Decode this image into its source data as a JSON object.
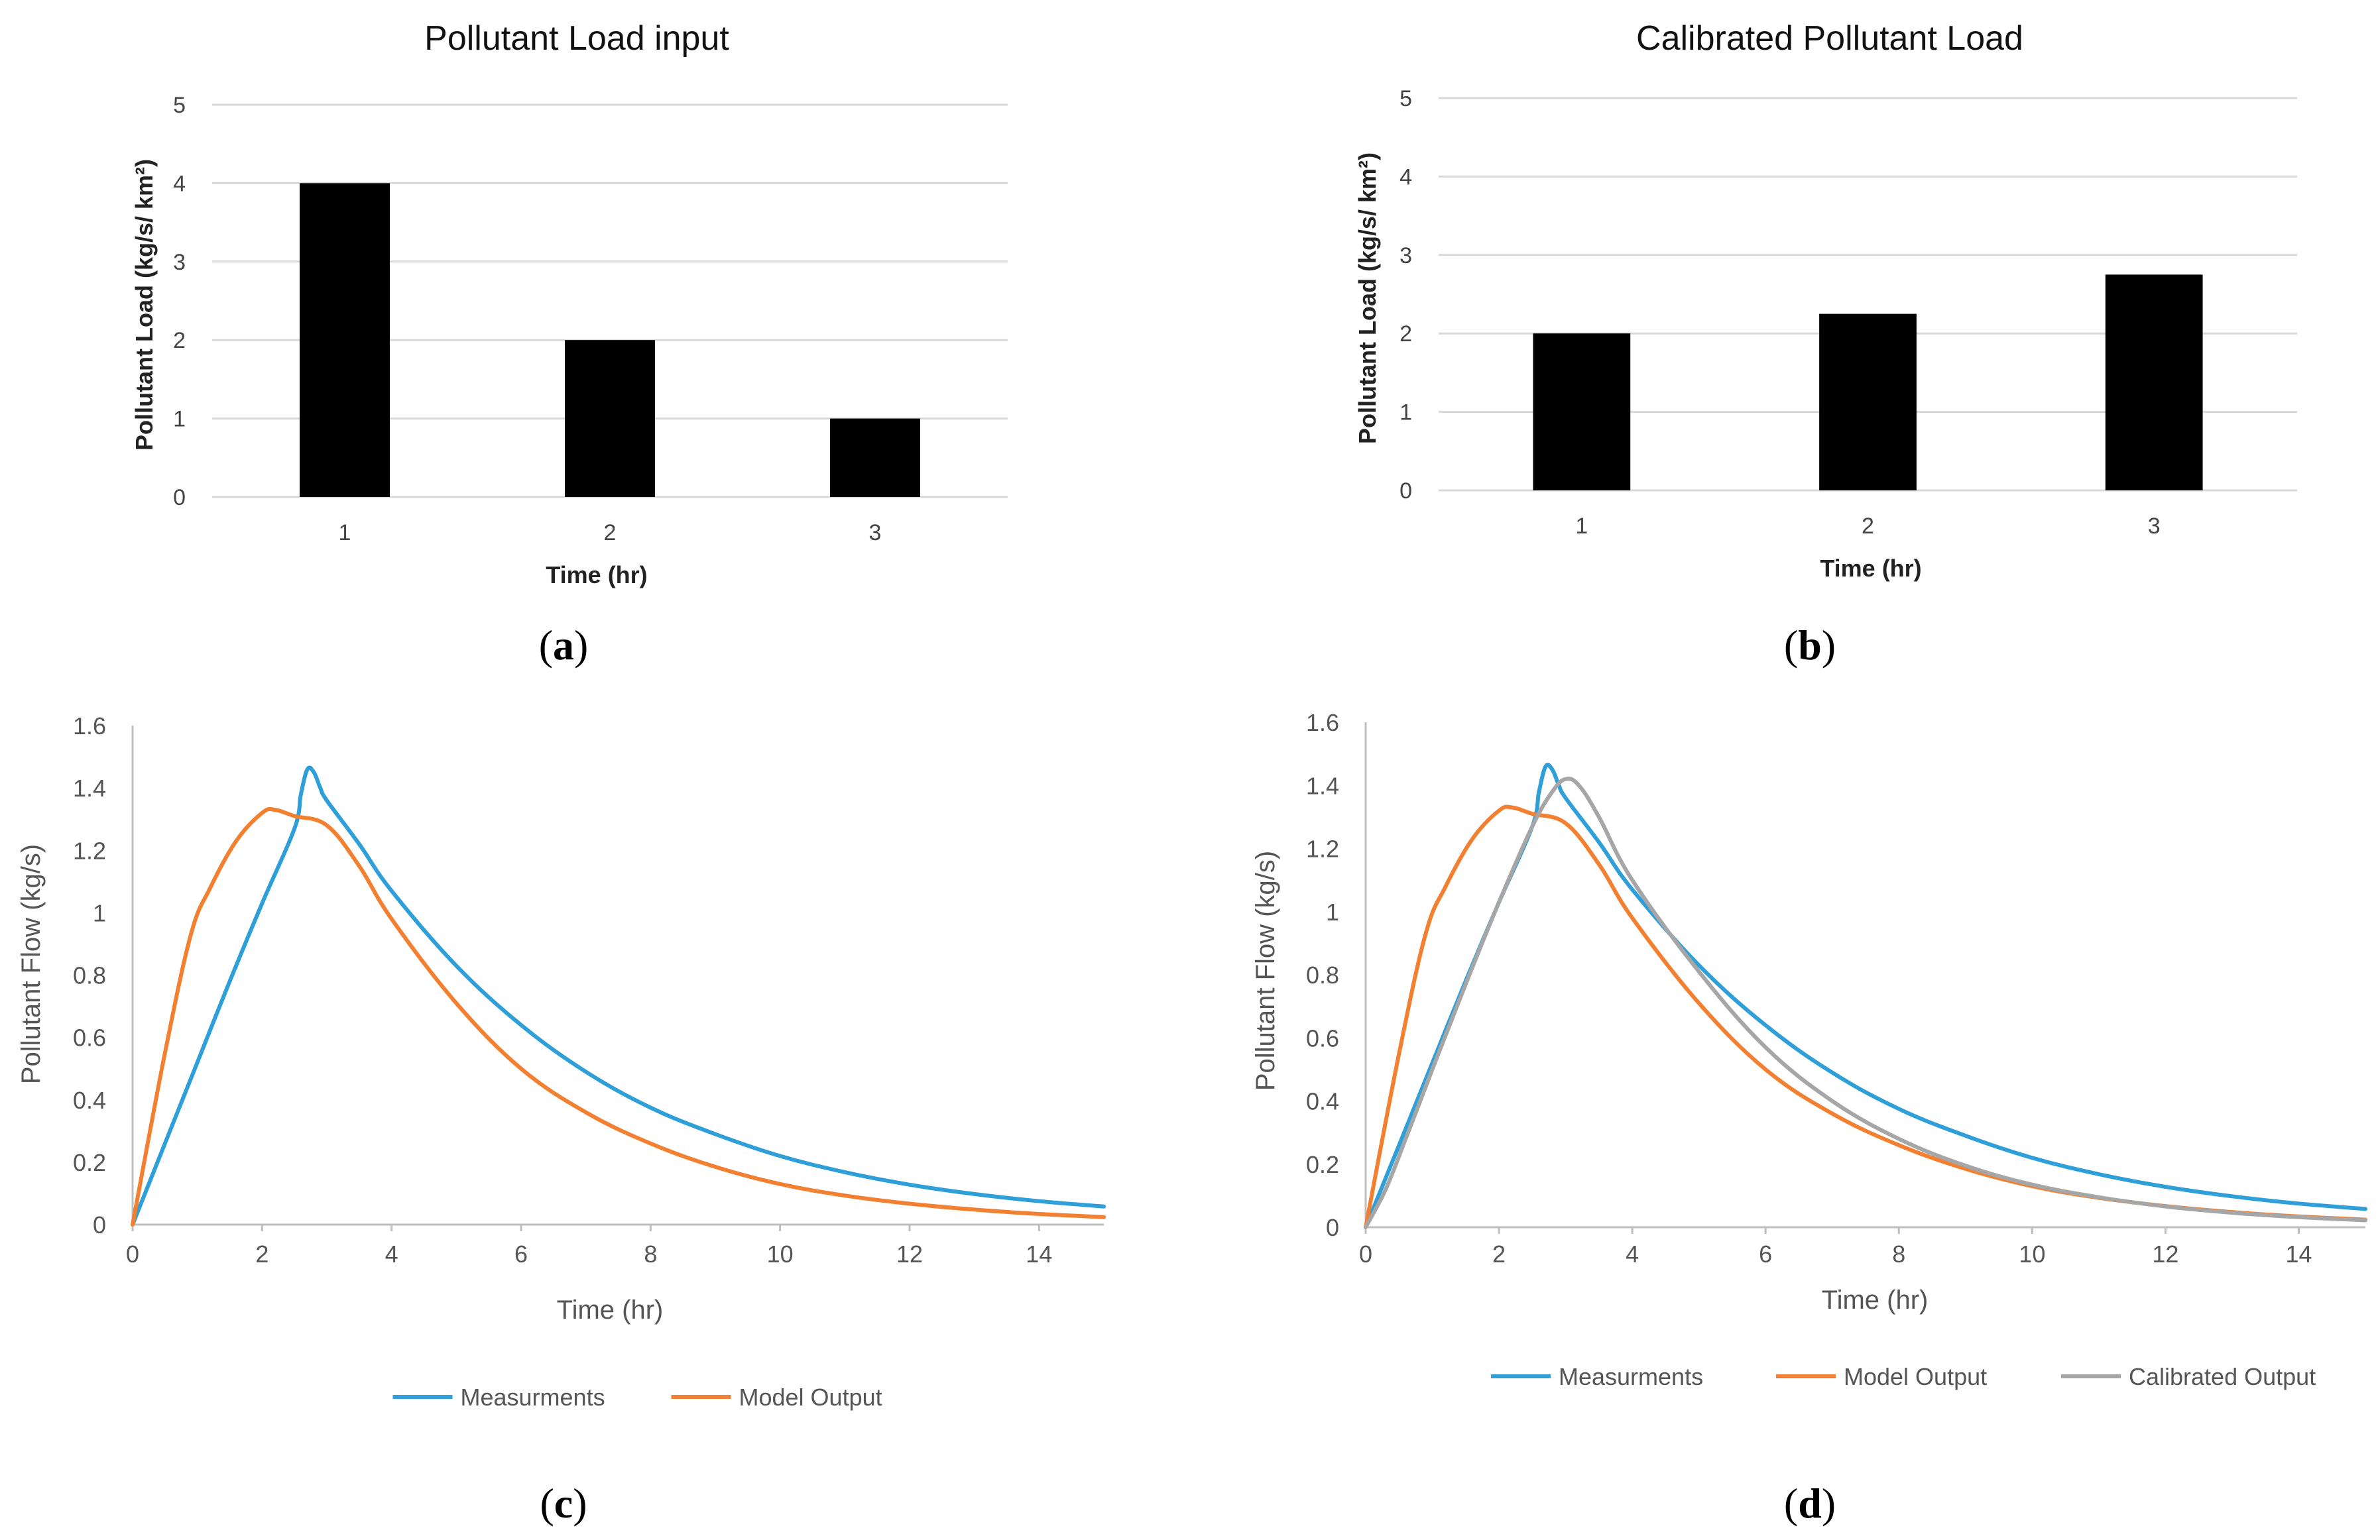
{
  "panels": {
    "a": {
      "caption_letter": "a"
    },
    "b": {
      "caption_letter": "b"
    },
    "c": {
      "caption_letter": "c"
    },
    "d": {
      "caption_letter": "d"
    }
  },
  "colors": {
    "bar": "#000000",
    "measurements": "#2E9FD9",
    "model_output": "#F28030",
    "calibrated_output": "#A6A6A6"
  },
  "chart_data": [
    {
      "id": "a",
      "type": "bar",
      "title": "Pollutant Load input",
      "xlabel": "Time (hr)",
      "ylabel": "Pollutant Load (kg/s/ km²)",
      "categories": [
        "1",
        "2",
        "3"
      ],
      "values": [
        4,
        2,
        1
      ],
      "ylim": [
        0,
        5
      ],
      "yticks": [
        0,
        1,
        2,
        3,
        4,
        5
      ],
      "grid": true
    },
    {
      "id": "b",
      "type": "bar",
      "title": "Calibrated Pollutant Load",
      "xlabel": "Time (hr)",
      "ylabel": "Pollutant Load (kg/s/ km²)",
      "categories": [
        "1",
        "2",
        "3"
      ],
      "values": [
        2.0,
        2.25,
        2.75
      ],
      "ylim": [
        0,
        5
      ],
      "yticks": [
        0,
        1,
        2,
        3,
        4,
        5
      ],
      "grid": true
    },
    {
      "id": "c",
      "type": "line",
      "title": "",
      "xlabel": "Time (hr)",
      "ylabel": "Pollutant Flow (kg/s)",
      "xlim": [
        0,
        15
      ],
      "ylim": [
        0,
        1.6
      ],
      "xticks": [
        "0",
        "2",
        "4",
        "6",
        "8",
        "10",
        "12",
        "14"
      ],
      "yticks": [
        "0",
        "0.2",
        "0.4",
        "0.6",
        "0.8",
        "1",
        "1.2",
        "1.4",
        "1.6"
      ],
      "legend": "bottom",
      "series": [
        {
          "name": "Measurments",
          "color_key": "measurements",
          "x": [
            0,
            0.5,
            1,
            1.5,
            2,
            2.5,
            2.6,
            2.7,
            2.8,
            2.9,
            3,
            3.5,
            4,
            5,
            6,
            7,
            8,
            9,
            10,
            11,
            12,
            13,
            14,
            15
          ],
          "y": [
            0.0,
            0.26,
            0.52,
            0.78,
            1.03,
            1.27,
            1.38,
            1.46,
            1.45,
            1.4,
            1.36,
            1.22,
            1.07,
            0.83,
            0.64,
            0.49,
            0.375,
            0.29,
            0.22,
            0.168,
            0.128,
            0.098,
            0.075,
            0.058
          ]
        },
        {
          "name": "Model Output",
          "color_key": "model_output",
          "x": [
            0,
            0.5,
            0.9,
            1.2,
            1.6,
            2.0,
            2.2,
            2.5,
            3.0,
            3.5,
            4,
            5,
            6,
            7,
            8,
            9,
            10,
            11,
            12,
            13,
            14,
            15
          ],
          "y": [
            0.0,
            0.55,
            0.93,
            1.08,
            1.23,
            1.32,
            1.33,
            1.31,
            1.28,
            1.15,
            0.98,
            0.71,
            0.5,
            0.36,
            0.26,
            0.185,
            0.13,
            0.093,
            0.067,
            0.048,
            0.034,
            0.024
          ]
        }
      ]
    },
    {
      "id": "d",
      "type": "line",
      "title": "",
      "xlabel": "Time (hr)",
      "ylabel": "Pollutant Flow (kg/s)",
      "xlim": [
        0,
        15
      ],
      "ylim": [
        0,
        1.6
      ],
      "xticks": [
        "0",
        "2",
        "4",
        "6",
        "8",
        "10",
        "12",
        "14"
      ],
      "yticks": [
        "0",
        "0.2",
        "0.4",
        "0.6",
        "0.8",
        "1",
        "1.2",
        "1.4",
        "1.6"
      ],
      "legend": "bottom",
      "series": [
        {
          "name": "Measurments",
          "color_key": "measurements",
          "x": [
            0,
            0.5,
            1,
            1.5,
            2,
            2.5,
            2.6,
            2.7,
            2.8,
            2.9,
            3,
            3.5,
            4,
            5,
            6,
            7,
            8,
            9,
            10,
            11,
            12,
            13,
            14,
            15
          ],
          "y": [
            0.0,
            0.26,
            0.52,
            0.78,
            1.03,
            1.27,
            1.38,
            1.46,
            1.45,
            1.4,
            1.36,
            1.22,
            1.07,
            0.83,
            0.64,
            0.49,
            0.375,
            0.29,
            0.22,
            0.168,
            0.128,
            0.098,
            0.075,
            0.058
          ]
        },
        {
          "name": "Model Output",
          "color_key": "model_output",
          "x": [
            0,
            0.5,
            0.9,
            1.2,
            1.6,
            2.0,
            2.2,
            2.5,
            3.0,
            3.5,
            4,
            5,
            6,
            7,
            8,
            9,
            10,
            11,
            12,
            13,
            14,
            15
          ],
          "y": [
            0.0,
            0.55,
            0.93,
            1.08,
            1.23,
            1.32,
            1.33,
            1.31,
            1.28,
            1.15,
            0.98,
            0.71,
            0.5,
            0.36,
            0.26,
            0.185,
            0.13,
            0.093,
            0.067,
            0.048,
            0.034,
            0.024
          ]
        },
        {
          "name": "Calibrated Output",
          "color_key": "calibrated_output",
          "x": [
            0,
            0.3,
            0.6,
            1,
            1.5,
            2,
            2.5,
            2.8,
            3.0,
            3.2,
            3.5,
            4,
            5,
            6,
            7,
            8,
            9,
            10,
            11,
            12,
            13,
            14,
            15
          ],
          "y": [
            0.0,
            0.12,
            0.28,
            0.5,
            0.77,
            1.03,
            1.27,
            1.38,
            1.42,
            1.4,
            1.3,
            1.1,
            0.81,
            0.57,
            0.4,
            0.28,
            0.195,
            0.135,
            0.095,
            0.066,
            0.046,
            0.032,
            0.022
          ]
        }
      ]
    }
  ]
}
